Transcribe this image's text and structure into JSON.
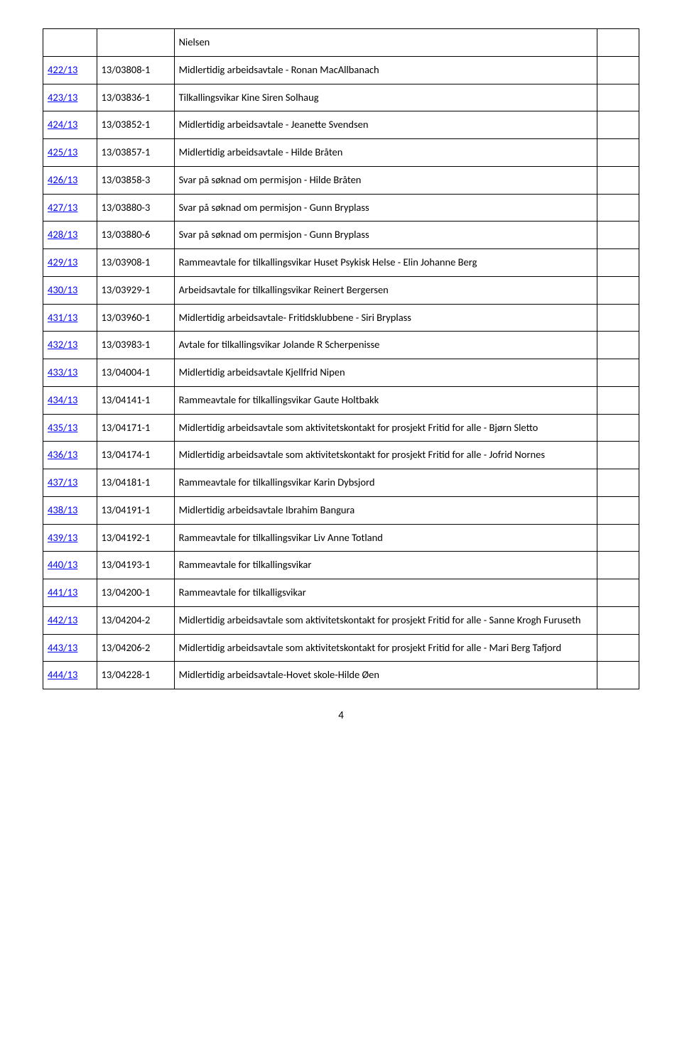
{
  "rows": [
    {
      "c1": "",
      "c2": "",
      "c3": "Nielsen",
      "c4": ""
    },
    {
      "c1": "422/13",
      "c2": "13/03808-1",
      "c3": "Midlertidig arbeidsavtale - Ronan MacAllbanach",
      "c4": ""
    },
    {
      "c1": "423/13",
      "c2": "13/03836-1",
      "c3": "Tilkallingsvikar Kine Siren Solhaug",
      "c4": ""
    },
    {
      "c1": "424/13",
      "c2": "13/03852-1",
      "c3": "Midlertidig arbeidsavtale - Jeanette Svendsen",
      "c4": ""
    },
    {
      "c1": "425/13",
      "c2": "13/03857-1",
      "c3": "Midlertidig arbeidsavtale - Hilde Bråten",
      "c4": ""
    },
    {
      "c1": "426/13",
      "c2": "13/03858-3",
      "c3": "Svar på søknad om permisjon - Hilde Bråten",
      "c4": ""
    },
    {
      "c1": "427/13",
      "c2": "13/03880-3",
      "c3": "Svar på søknad om permisjon -  Gunn Bryplass",
      "c4": ""
    },
    {
      "c1": "428/13",
      "c2": "13/03880-6",
      "c3": "Svar på søknad om permisjon -  Gunn Bryplass",
      "c4": ""
    },
    {
      "c1": "429/13",
      "c2": "13/03908-1",
      "c3": "Rammeavtale for tilkallingsvikar Huset Psykisk Helse - Elin Johanne Berg",
      "c4": ""
    },
    {
      "c1": "430/13",
      "c2": "13/03929-1",
      "c3": "Arbeidsavtale for tilkallingsvikar  Reinert Bergersen",
      "c4": ""
    },
    {
      "c1": "431/13",
      "c2": "13/03960-1",
      "c3": "Midlertidig arbeidsavtale- Fritidsklubbene - Siri Bryplass",
      "c4": ""
    },
    {
      "c1": "432/13",
      "c2": "13/03983-1",
      "c3": " Avtale for tilkallingsvikar Jolande R Scherpenisse",
      "c4": ""
    },
    {
      "c1": "433/13",
      "c2": "13/04004-1",
      "c3": "Midlertidig arbeidsavtale Kjellfrid Nipen",
      "c4": ""
    },
    {
      "c1": "434/13",
      "c2": "13/04141-1",
      "c3": "Rammeavtale for tilkallingsvikar Gaute Holtbakk",
      "c4": ""
    },
    {
      "c1": "435/13",
      "c2": "13/04171-1",
      "c3": "Midlertidig arbeidsavtale som aktivitetskontakt for prosjekt Fritid for alle - Bjørn Sletto",
      "c4": ""
    },
    {
      "c1": "436/13",
      "c2": "13/04174-1",
      "c3": "Midlertidig arbeidsavtale som aktivitetskontakt for prosjekt Fritid for alle - Jofrid Nornes",
      "c4": ""
    },
    {
      "c1": "437/13",
      "c2": "13/04181-1",
      "c3": " Rammeavtale for tilkallingsvikar Karin Dybsjord",
      "c4": ""
    },
    {
      "c1": "438/13",
      "c2": "13/04191-1",
      "c3": "Midlertidig arbeidsavtale Ibrahim Bangura",
      "c4": ""
    },
    {
      "c1": "439/13",
      "c2": "13/04192-1",
      "c3": " Rammeavtale for tilkallingsvikar Liv Anne Totland",
      "c4": ""
    },
    {
      "c1": "440/13",
      "c2": "13/04193-1",
      "c3": "Rammeavtale for tilkallingsvikar",
      "c4": ""
    },
    {
      "c1": "441/13",
      "c2": "13/04200-1",
      "c3": "Rammeavtale for tilkalligsvikar",
      "c4": ""
    },
    {
      "c1": "442/13",
      "c2": "13/04204-2",
      "c3": "Midlertidig arbeidsavtale som aktivitetskontakt for prosjekt Fritid for alle - Sanne Krogh Furuseth",
      "c4": ""
    },
    {
      "c1": "443/13",
      "c2": "13/04206-2",
      "c3": "Midlertidig arbeidsavtale som aktivitetskontakt for prosjekt Fritid for alle - Mari Berg Tafjord",
      "c4": ""
    },
    {
      "c1": "444/13",
      "c2": "13/04228-1",
      "c3": "Midlertidig arbeidsavtale-Hovet skole-Hilde Øen",
      "c4": ""
    }
  ],
  "link_color": "#0000ff",
  "text_color": "#000000",
  "border_color": "#000000",
  "background": "#ffffff",
  "page_number": "4"
}
